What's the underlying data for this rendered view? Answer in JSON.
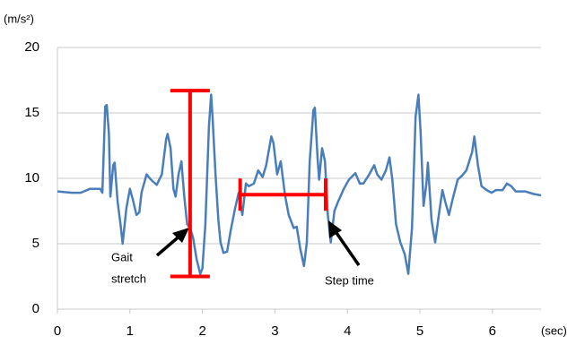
{
  "chart_data": {
    "type": "line",
    "y_unit": "(m/s²)",
    "x_unit": "(sec)",
    "xlim": [
      0,
      6.67
    ],
    "xticks": [
      0,
      1,
      2,
      3,
      4,
      5,
      6
    ],
    "ylim": [
      0,
      20
    ],
    "yticks": [
      0,
      5,
      10,
      15,
      20
    ],
    "grid": true,
    "series": [
      {
        "color": "#4a7ebb",
        "x": [
          0,
          0.2,
          0.32,
          0.45,
          0.59,
          0.62,
          0.66,
          0.68,
          0.71,
          0.73,
          0.77,
          0.79,
          0.83,
          0.87,
          0.9,
          0.95,
          1.0,
          1.04,
          1.09,
          1.13,
          1.16,
          1.23,
          1.29,
          1.37,
          1.44,
          1.5,
          1.52,
          1.56,
          1.6,
          1.63,
          1.67,
          1.71,
          1.75,
          1.79,
          1.83,
          1.87,
          1.92,
          1.97,
          2.0,
          2.04,
          2.09,
          2.12,
          2.14,
          2.18,
          2.22,
          2.25,
          2.29,
          2.34,
          2.39,
          2.45,
          2.5,
          2.55,
          2.6,
          2.64,
          2.71,
          2.77,
          2.83,
          2.88,
          2.95,
          2.98,
          3.03,
          3.08,
          3.14,
          3.19,
          3.26,
          3.3,
          3.35,
          3.4,
          3.44,
          3.48,
          3.53,
          3.55,
          3.59,
          3.61,
          3.65,
          3.69,
          3.73,
          3.77,
          3.82,
          3.87,
          3.95,
          4.02,
          4.11,
          4.17,
          4.22,
          4.29,
          4.37,
          4.41,
          4.47,
          4.53,
          4.58,
          4.62,
          4.67,
          4.73,
          4.79,
          4.84,
          4.89,
          4.94,
          4.98,
          5.01,
          5.05,
          5.09,
          5.11,
          5.16,
          5.21,
          5.26,
          5.31,
          5.35,
          5.4,
          5.46,
          5.52,
          5.58,
          5.64,
          5.72,
          5.75,
          5.8,
          5.85,
          5.92,
          5.99,
          6.05,
          6.14,
          6.2,
          6.26,
          6.32,
          6.45,
          6.57,
          6.67
        ],
        "values": [
          9.0,
          8.9,
          8.9,
          9.2,
          9.2,
          8.9,
          15.5,
          15.6,
          13.4,
          8.6,
          11.0,
          11.2,
          8.2,
          6.5,
          5.0,
          7.7,
          9.2,
          8.4,
          7.2,
          7.4,
          8.9,
          10.3,
          9.9,
          9.5,
          10.3,
          13.0,
          13.4,
          12.3,
          9.2,
          8.6,
          10.3,
          11.3,
          8.6,
          6.5,
          6.2,
          5.5,
          3.8,
          2.7,
          3.1,
          6.5,
          14.0,
          16.4,
          14.7,
          10.3,
          6.8,
          5.1,
          4.3,
          4.4,
          6.0,
          7.7,
          8.9,
          7.2,
          9.6,
          9.4,
          9.6,
          10.6,
          10.1,
          11.0,
          13.2,
          12.7,
          10.3,
          11.3,
          8.7,
          7.2,
          6.2,
          6.3,
          4.6,
          3.3,
          5.1,
          11.3,
          15.2,
          15.4,
          11.4,
          9.9,
          12.3,
          11.3,
          7.2,
          5.1,
          7.5,
          8.2,
          9.2,
          9.9,
          10.4,
          9.6,
          9.6,
          10.2,
          11.0,
          10.3,
          9.9,
          10.6,
          11.6,
          9.9,
          6.5,
          5.1,
          4.2,
          2.7,
          6.2,
          14.7,
          16.4,
          13.4,
          7.9,
          9.6,
          11.2,
          6.8,
          5.1,
          7.2,
          9.1,
          8.2,
          7.2,
          8.6,
          9.9,
          10.2,
          10.6,
          12.0,
          13.2,
          11.0,
          9.4,
          9.1,
          8.9,
          9.1,
          9.1,
          9.6,
          9.4,
          9.0,
          9.0,
          8.8,
          8.7
        ]
      }
    ],
    "annotations": [
      {
        "lines": [
          "Gait",
          "stretch"
        ],
        "color": "#ff0000",
        "x": 1.83,
        "y": [
          2.5,
          16.7
        ]
      },
      {
        "lines": [
          "Step time"
        ],
        "color": "#ff0000",
        "x": [
          2.52,
          3.7
        ],
        "y": 8.75
      }
    ]
  }
}
